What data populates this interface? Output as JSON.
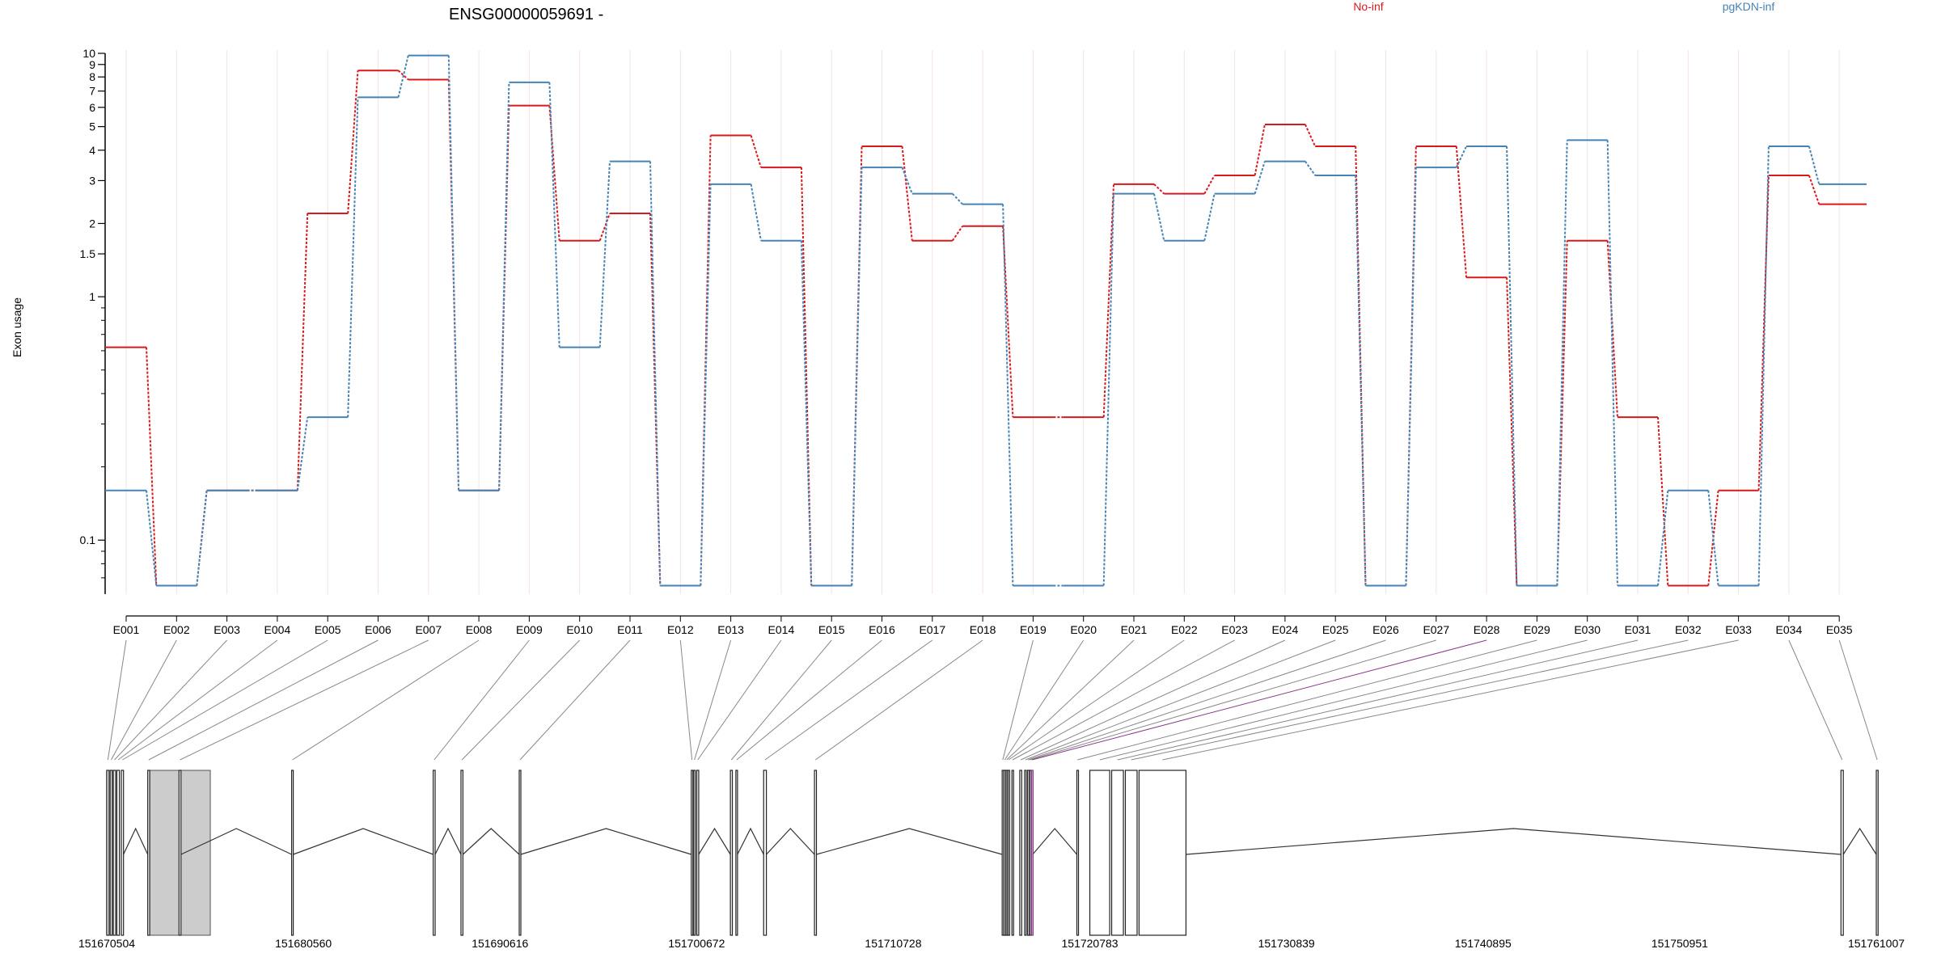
{
  "chart_data": [
    {
      "type": "line",
      "title": "ENSG00000059691 -",
      "ylabel": "Exon usage",
      "yscale": "log",
      "yticks": [
        0.1,
        1,
        1.5,
        2,
        3,
        4,
        5,
        6,
        7,
        8,
        9,
        10
      ],
      "ytick_labels": [
        "0.1",
        "1",
        "1.5",
        "2",
        "3",
        "4",
        "5",
        "6",
        "7",
        "8",
        "9",
        "10"
      ],
      "ylim": [
        0.06,
        10
      ],
      "categories": [
        "E001",
        "E002",
        "E003",
        "E004",
        "E005",
        "E006",
        "E007",
        "E008",
        "E009",
        "E010",
        "E011",
        "E012",
        "E013",
        "E014",
        "E015",
        "E016",
        "E017",
        "E018",
        "E019",
        "E020",
        "E021",
        "E022",
        "E023",
        "E024",
        "E025",
        "E026",
        "E027",
        "E028",
        "E029",
        "E030",
        "E031",
        "E032",
        "E033",
        "E034",
        "E035"
      ],
      "grid": "vertical",
      "legend_position": "top",
      "series": [
        {
          "name": "No-inf",
          "color": "#d7191c",
          "values": [
            0.62,
            0.065,
            0.16,
            0.16,
            2.2,
            8.5,
            7.8,
            0.16,
            6.1,
            1.7,
            2.2,
            0.065,
            4.6,
            3.4,
            0.065,
            4.15,
            1.7,
            1.95,
            0.32,
            0.32,
            2.9,
            2.65,
            3.15,
            5.1,
            4.15,
            0.065,
            4.15,
            1.2,
            0.065,
            1.7,
            0.32,
            0.065,
            0.16,
            3.15,
            2.4
          ]
        },
        {
          "name": "pgKDN-inf",
          "color": "#4682b4",
          "values": [
            0.16,
            0.065,
            0.16,
            0.16,
            0.32,
            6.6,
            9.8,
            0.16,
            7.6,
            0.62,
            3.6,
            0.065,
            2.9,
            1.7,
            0.065,
            3.4,
            2.65,
            2.4,
            0.065,
            0.065,
            2.65,
            1.7,
            2.65,
            3.6,
            3.15,
            0.065,
            3.4,
            4.15,
            0.065,
            4.4,
            0.065,
            0.16,
            0.065,
            4.15,
            2.9
          ]
        }
      ]
    },
    {
      "type": "gene_model",
      "coordinate_labels": [
        "151670504",
        "151680560",
        "151690616",
        "151700672",
        "151710728",
        "151720783",
        "151730839",
        "151740895",
        "151750951",
        "151761007"
      ],
      "coordinate_ticks": [
        151670504,
        151680560,
        151690616,
        151700672,
        151710728,
        151720783,
        151730839,
        151740895,
        151750951,
        151761007
      ],
      "range": [
        151670504,
        151761007
      ],
      "highlight_color": "#8b3a8b",
      "exons": [
        {
          "id": "E001",
          "start": 151670504,
          "end": 151670620
        },
        {
          "id": "E002",
          "start": 151670680,
          "end": 151670780
        },
        {
          "id": "E003",
          "start": 151670840,
          "end": 151670960
        },
        {
          "id": "E004",
          "start": 151671020,
          "end": 151671150
        },
        {
          "id": "E005",
          "start": 151671250,
          "end": 151671360
        },
        {
          "id": "E006",
          "start": 151672600,
          "end": 151672700
        },
        {
          "id": "E007",
          "start": 151674200,
          "end": 151674300
        },
        {
          "id": "E008",
          "start": 151679960,
          "end": 151680040
        },
        {
          "id": "E009",
          "start": 151687200,
          "end": 151687300
        },
        {
          "id": "E010",
          "start": 151688620,
          "end": 151688720
        },
        {
          "id": "E011",
          "start": 151691600,
          "end": 151691680
        },
        {
          "id": "E012",
          "start": 151700400,
          "end": 151700470
        },
        {
          "id": "E013",
          "start": 151700520,
          "end": 151700600
        },
        {
          "id": "E014",
          "start": 151700680,
          "end": 151700780
        },
        {
          "id": "E015",
          "start": 151702400,
          "end": 151702500
        },
        {
          "id": "E016",
          "start": 151702680,
          "end": 151702760
        },
        {
          "id": "E017",
          "start": 151704100,
          "end": 151704240
        },
        {
          "id": "E018",
          "start": 151706700,
          "end": 151706800
        },
        {
          "id": "E019",
          "start": 151716300,
          "end": 151716360
        },
        {
          "id": "E020",
          "start": 151716400,
          "end": 151716460
        },
        {
          "id": "E021",
          "start": 151716500,
          "end": 151716560
        },
        {
          "id": "E022",
          "start": 151716600,
          "end": 151716660
        },
        {
          "id": "E023",
          "start": 151716800,
          "end": 151716860
        },
        {
          "id": "E024",
          "start": 151717200,
          "end": 151717300
        },
        {
          "id": "E025",
          "start": 151717450,
          "end": 151717520
        },
        {
          "id": "E026",
          "start": 151717600,
          "end": 151717660
        },
        {
          "id": "E027",
          "start": 151717700,
          "end": 151717760
        },
        {
          "id": "E028",
          "start": 151717800,
          "end": 151717860
        },
        {
          "id": "E029",
          "start": 151720120,
          "end": 151720180
        },
        {
          "id": "E030",
          "start": 151720783,
          "end": 151721800
        },
        {
          "id": "E031",
          "start": 151721900,
          "end": 151722500
        },
        {
          "id": "E032",
          "start": 151722600,
          "end": 151723200
        },
        {
          "id": "E033",
          "start": 151723300,
          "end": 151725700
        },
        {
          "id": "E034",
          "start": 151759200,
          "end": 151759320
        },
        {
          "id": "E035",
          "start": 151761007,
          "end": 151761100
        }
      ],
      "introns_peak": [
        {
          "start": 151671360,
          "end": 151672600
        },
        {
          "start": 151674300,
          "end": 151679960
        },
        {
          "start": 151680040,
          "end": 151687200
        },
        {
          "start": 151687300,
          "end": 151688620
        },
        {
          "start": 151688720,
          "end": 151691600
        },
        {
          "start": 151691680,
          "end": 151700400
        },
        {
          "start": 151700780,
          "end": 151702400
        },
        {
          "start": 151702760,
          "end": 151704100
        },
        {
          "start": 151704240,
          "end": 151706700
        },
        {
          "start": 151706800,
          "end": 151716300
        },
        {
          "start": 151717860,
          "end": 151720120
        },
        {
          "start": 151725700,
          "end": 151759200
        },
        {
          "start": 151759320,
          "end": 151761007
        }
      ],
      "shaded_region": {
        "start": 151672700,
        "end": 151675800
      }
    }
  ]
}
